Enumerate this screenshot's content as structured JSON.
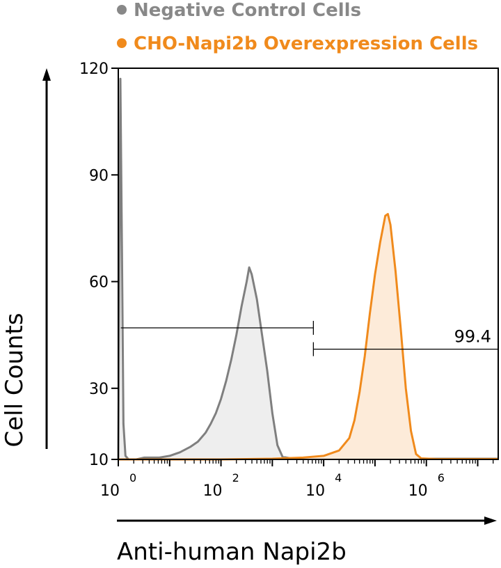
{
  "chart_data": {
    "type": "histogram-overlay",
    "title": "",
    "xlabel": "Anti-human Napi2b",
    "ylabel": "Cell Counts",
    "x_scale": "log10",
    "xlim_exponent": [
      0,
      7.4
    ],
    "ylim": [
      10,
      120
    ],
    "y_ticks": [
      "10",
      "30",
      "60",
      "90",
      "120"
    ],
    "y_tick_values": [
      10,
      30,
      60,
      90,
      120
    ],
    "x_ticks": [
      {
        "base": "10",
        "exp": "0",
        "value": 0
      },
      {
        "base": "10",
        "exp": "2",
        "value": 2
      },
      {
        "base": "10",
        "exp": "4",
        "value": 4
      },
      {
        "base": "10",
        "exp": "6",
        "value": 6
      }
    ],
    "legend": [
      {
        "label": "Negative Control Cells",
        "color": "#888888"
      },
      {
        "label": "CHO-Napi2b Overexpression Cells",
        "color": "#f08a1c"
      }
    ],
    "series": [
      {
        "name": "Negative Control Cells",
        "color": "#7f7f7f",
        "fill": "#eeeeee",
        "points": [
          [
            0.0,
            10
          ],
          [
            0.02,
            60
          ],
          [
            0.04,
            117
          ],
          [
            0.07,
            70
          ],
          [
            0.1,
            20
          ],
          [
            0.14,
            11
          ],
          [
            0.2,
            10
          ],
          [
            0.35,
            10
          ],
          [
            0.5,
            10.5
          ],
          [
            0.8,
            10.5
          ],
          [
            1.0,
            11
          ],
          [
            1.2,
            12
          ],
          [
            1.4,
            13.5
          ],
          [
            1.55,
            15
          ],
          [
            1.7,
            17.5
          ],
          [
            1.8,
            20
          ],
          [
            1.9,
            23
          ],
          [
            2.0,
            27
          ],
          [
            2.1,
            32
          ],
          [
            2.2,
            38
          ],
          [
            2.3,
            45
          ],
          [
            2.4,
            53
          ],
          [
            2.5,
            60
          ],
          [
            2.55,
            64
          ],
          [
            2.6,
            62
          ],
          [
            2.7,
            55
          ],
          [
            2.8,
            45
          ],
          [
            2.9,
            35
          ],
          [
            3.0,
            23
          ],
          [
            3.1,
            14
          ],
          [
            3.2,
            10.7
          ],
          [
            3.4,
            10.2
          ],
          [
            4.0,
            10.2
          ],
          [
            5.0,
            10.2
          ],
          [
            6.0,
            10.2
          ],
          [
            7.4,
            10.2
          ]
        ]
      },
      {
        "name": "CHO-Napi2b Overexpression Cells",
        "color": "#f08a1c",
        "fill": "#fdebd9",
        "points": [
          [
            0.0,
            10
          ],
          [
            1.0,
            10
          ],
          [
            2.0,
            10
          ],
          [
            3.0,
            10.2
          ],
          [
            3.6,
            10.5
          ],
          [
            4.0,
            11
          ],
          [
            4.3,
            12.5
          ],
          [
            4.5,
            16
          ],
          [
            4.6,
            21
          ],
          [
            4.7,
            29
          ],
          [
            4.8,
            39
          ],
          [
            4.9,
            51
          ],
          [
            5.0,
            62
          ],
          [
            5.1,
            71
          ],
          [
            5.2,
            78.5
          ],
          [
            5.25,
            79
          ],
          [
            5.3,
            76
          ],
          [
            5.4,
            63
          ],
          [
            5.5,
            47
          ],
          [
            5.6,
            30
          ],
          [
            5.7,
            18
          ],
          [
            5.8,
            11.5
          ],
          [
            5.9,
            10.3
          ],
          [
            6.2,
            10.1
          ],
          [
            7.4,
            10.1
          ]
        ]
      }
    ],
    "gates": [
      {
        "label": "",
        "x_start": 0.05,
        "x_end": 3.8,
        "y": 47
      },
      {
        "label": "99.4",
        "x_start": 3.8,
        "x_end": 7.4,
        "y": 41
      }
    ]
  }
}
